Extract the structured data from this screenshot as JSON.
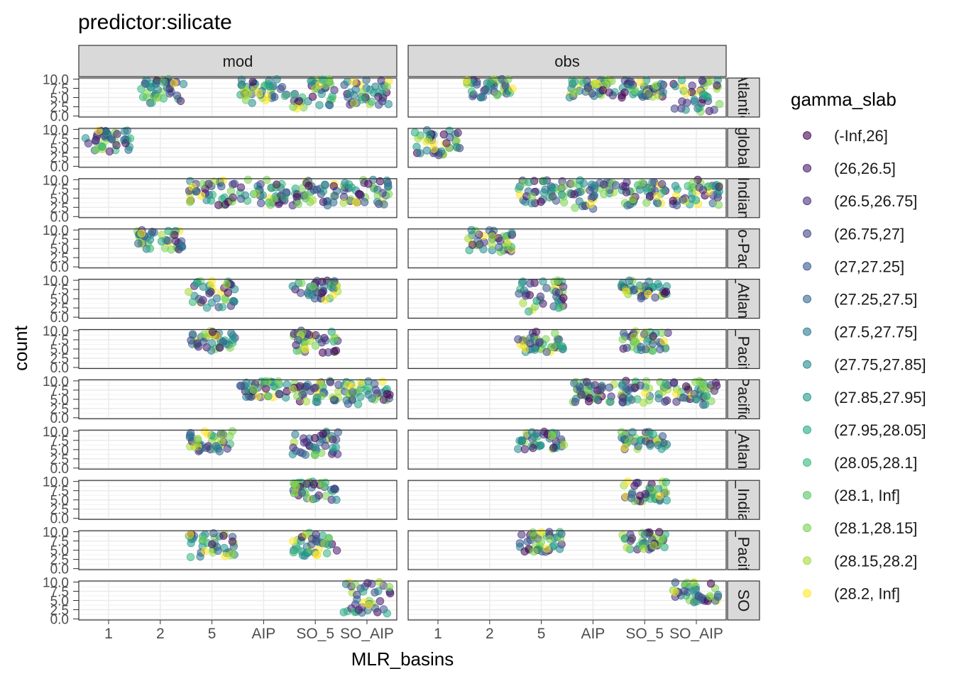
{
  "chart_data": {
    "type": "scatter",
    "title": "predictor:silicate",
    "xlabel": "MLR_basins",
    "ylabel": "count",
    "x_categories": [
      "1",
      "2",
      "5",
      "AIP",
      "SO_5",
      "SO_AIP"
    ],
    "y_ticks": [
      "0.0",
      "2.5",
      "5.0",
      "7.5",
      "10.0"
    ],
    "ylim": [
      0,
      10
    ],
    "grid": true,
    "legend": {
      "title": "gamma_slab",
      "placement": "right",
      "levels": [
        "(-Inf,26]",
        "(26,26.5]",
        "(26.5,26.75]",
        "(26.75,27]",
        "(27,27.25]",
        "(27.25,27.5]",
        "(27.5,27.75]",
        "(27.75,27.85]",
        "(27.85,27.95]",
        "(27.95,28.05]",
        "(28.05,28.1]",
        "(28.1, Inf]",
        "(28.1,28.15]",
        "(28.15,28.2]",
        "(28.2, Inf]"
      ],
      "colors": [
        "#440154",
        "#481A6C",
        "#472F7D",
        "#414487",
        "#39568C",
        "#31688E",
        "#2A788E",
        "#23888E",
        "#1F988B",
        "#22A884",
        "#35B779",
        "#54C568",
        "#7AD151",
        "#A5DB36",
        "#FDE725"
      ]
    },
    "col_facets": [
      "mod",
      "obs"
    ],
    "row_facets": [
      {
        "label": "Atlantic",
        "panels": [
          {
            "col": "mod",
            "groups": [
              {
                "x": "2",
                "count_range": [
                  3.5,
                  10
                ]
              },
              {
                "x": "AIP",
                "count_range": [
                  3.5,
                  10
                ]
              },
              {
                "x": "SO_5",
                "count_range": [
                  2,
                  10
                ]
              },
              {
                "x": "SO_AIP",
                "count_range": [
                  3,
                  10
                ]
              }
            ]
          },
          {
            "col": "obs",
            "groups": [
              {
                "x": "2",
                "count_range": [
                  5,
                  10
                ]
              },
              {
                "x": "AIP",
                "count_range": [
                  5,
                  10
                ]
              },
              {
                "x": "SO_5",
                "count_range": [
                  5,
                  10
                ]
              },
              {
                "x": "SO_AIP",
                "count_range": [
                  1,
                  10
                ]
              }
            ]
          }
        ]
      },
      {
        "label": "global",
        "panels": [
          {
            "col": "mod",
            "groups": [
              {
                "x": "1",
                "count_range": [
                  4,
                  10
                ]
              }
            ]
          },
          {
            "col": "obs",
            "groups": [
              {
                "x": "1",
                "count_range": [
                  3,
                  10
                ]
              }
            ]
          }
        ]
      },
      {
        "label": "Indian",
        "panels": [
          {
            "col": "mod",
            "groups": [
              {
                "x": "5",
                "count_range": [
                  3,
                  10
                ]
              },
              {
                "x": "AIP",
                "count_range": [
                  3,
                  10
                ]
              },
              {
                "x": "SO_5",
                "count_range": [
                  3,
                  10
                ]
              },
              {
                "x": "SO_AIP",
                "count_range": [
                  3,
                  10
                ]
              }
            ]
          },
          {
            "col": "obs",
            "groups": [
              {
                "x": "5",
                "count_range": [
                  3.5,
                  10
                ]
              },
              {
                "x": "AIP",
                "count_range": [
                  2,
                  10
                ]
              },
              {
                "x": "SO_5",
                "count_range": [
                  3,
                  10
                ]
              },
              {
                "x": "SO_AIP",
                "count_range": [
                  3,
                  10
                ]
              }
            ]
          }
        ]
      },
      {
        "label": "Indo-Pacific",
        "panels": [
          {
            "col": "mod",
            "groups": [
              {
                "x": "2",
                "count_range": [
                  4.5,
                  10
                ]
              }
            ]
          },
          {
            "col": "obs",
            "groups": [
              {
                "x": "2",
                "count_range": [
                  4,
                  10
                ]
              }
            ]
          }
        ]
      },
      {
        "label": "N_Atlantic",
        "panels": [
          {
            "col": "mod",
            "groups": [
              {
                "x": "5",
                "count_range": [
                  2,
                  10
                ]
              },
              {
                "x": "SO_5",
                "count_range": [
                  4.5,
                  10
                ]
              }
            ]
          },
          {
            "col": "obs",
            "groups": [
              {
                "x": "5",
                "count_range": [
                  1.5,
                  10
                ]
              },
              {
                "x": "SO_5",
                "count_range": [
                  5,
                  10
                ]
              }
            ]
          }
        ]
      },
      {
        "label": "N_Pacific",
        "panels": [
          {
            "col": "mod",
            "groups": [
              {
                "x": "5",
                "count_range": [
                  4.5,
                  10
                ]
              },
              {
                "x": "SO_5",
                "count_range": [
                  4,
                  10
                ]
              }
            ]
          },
          {
            "col": "obs",
            "groups": [
              {
                "x": "5",
                "count_range": [
                  4,
                  10
                ]
              },
              {
                "x": "SO_5",
                "count_range": [
                  4.5,
                  10
                ]
              }
            ]
          }
        ]
      },
      {
        "label": "Pacific",
        "panels": [
          {
            "col": "mod",
            "groups": [
              {
                "x": "AIP",
                "count_range": [
                  5,
                  10
                ]
              },
              {
                "x": "SO_5",
                "count_range": [
                  4,
                  10
                ]
              },
              {
                "x": "SO_AIP",
                "count_range": [
                  3.5,
                  10
                ]
              }
            ]
          },
          {
            "col": "obs",
            "groups": [
              {
                "x": "AIP",
                "count_range": [
                  4,
                  10
                ]
              },
              {
                "x": "SO_5",
                "count_range": [
                  4,
                  10
                ]
              },
              {
                "x": "SO_AIP",
                "count_range": [
                  3.5,
                  10
                ]
              }
            ]
          }
        ]
      },
      {
        "label": "S_Atlantic",
        "panels": [
          {
            "col": "mod",
            "groups": [
              {
                "x": "5",
                "count_range": [
                  4.5,
                  10
                ]
              },
              {
                "x": "SO_5",
                "count_range": [
                  3.5,
                  10
                ]
              }
            ]
          },
          {
            "col": "obs",
            "groups": [
              {
                "x": "5",
                "count_range": [
                  5,
                  10
                ]
              },
              {
                "x": "SO_5",
                "count_range": [
                  5,
                  10
                ]
              }
            ]
          }
        ]
      },
      {
        "label": "S_Indian",
        "panels": [
          {
            "col": "mod",
            "groups": [
              {
                "x": "SO_5",
                "count_range": [
                  5,
                  10
                ]
              }
            ]
          },
          {
            "col": "obs",
            "groups": [
              {
                "x": "SO_5",
                "count_range": [
                  4.5,
                  10
                ]
              }
            ]
          }
        ]
      },
      {
        "label": "S_Pacific",
        "panels": [
          {
            "col": "mod",
            "groups": [
              {
                "x": "5",
                "count_range": [
                  3,
                  10
                ]
              },
              {
                "x": "SO_5",
                "count_range": [
                  3.5,
                  10
                ]
              }
            ]
          },
          {
            "col": "obs",
            "groups": [
              {
                "x": "5",
                "count_range": [
                  4.5,
                  10
                ]
              },
              {
                "x": "SO_5",
                "count_range": [
                  5,
                  10
                ]
              }
            ]
          }
        ]
      },
      {
        "label": "SO",
        "panels": [
          {
            "col": "mod",
            "groups": [
              {
                "x": "SO_AIP",
                "count_range": [
                  1.5,
                  10
                ]
              }
            ]
          },
          {
            "col": "obs",
            "groups": [
              {
                "x": "SO_AIP",
                "count_range": [
                  4.5,
                  10
                ]
              }
            ]
          }
        ]
      }
    ]
  }
}
